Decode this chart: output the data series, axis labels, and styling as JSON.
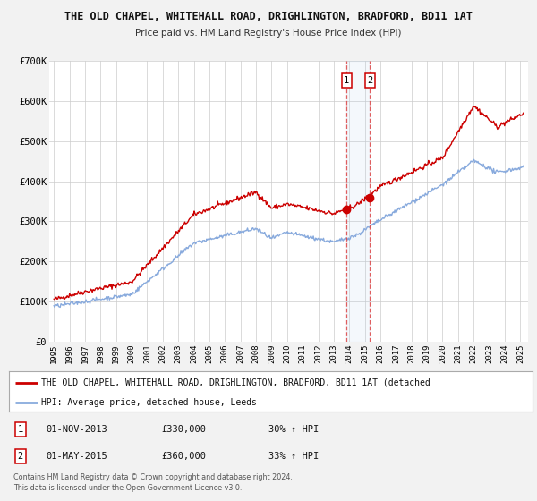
{
  "title": "THE OLD CHAPEL, WHITEHALL ROAD, DRIGHLINGTON, BRADFORD, BD11 1AT",
  "subtitle": "Price paid vs. HM Land Registry's House Price Index (HPI)",
  "ylim": [
    0,
    700000
  ],
  "yticks": [
    0,
    100000,
    200000,
    300000,
    400000,
    500000,
    600000,
    700000
  ],
  "ytick_labels": [
    "£0",
    "£100K",
    "£200K",
    "£300K",
    "£400K",
    "£500K",
    "£600K",
    "£700K"
  ],
  "xlim_start": 1994.7,
  "xlim_end": 2025.5,
  "red_line_color": "#cc0000",
  "blue_line_color": "#88aadd",
  "marker_color": "#cc0000",
  "vline1_x": 2013.833,
  "vline2_x": 2015.333,
  "point1_x": 2013.833,
  "point1_y": 330000,
  "point2_x": 2015.333,
  "point2_y": 360000,
  "legend_red_label": "THE OLD CHAPEL, WHITEHALL ROAD, DRIGHLINGTON, BRADFORD, BD11 1AT (detached",
  "legend_blue_label": "HPI: Average price, detached house, Leeds",
  "table_row1": [
    "1",
    "01-NOV-2013",
    "£330,000",
    "30% ↑ HPI"
  ],
  "table_row2": [
    "2",
    "01-MAY-2015",
    "£360,000",
    "33% ↑ HPI"
  ],
  "footer_line1": "Contains HM Land Registry data © Crown copyright and database right 2024.",
  "footer_line2": "This data is licensed under the Open Government Licence v3.0.",
  "bg_color": "#f2f2f2",
  "plot_bg_color": "#ffffff",
  "grid_color": "#cccccc"
}
